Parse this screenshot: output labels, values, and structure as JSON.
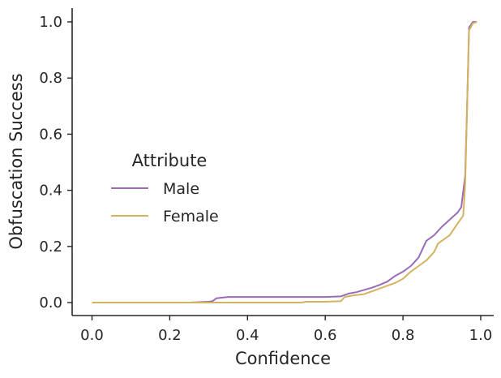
{
  "chart_data": {
    "type": "line",
    "title": "",
    "xlabel": "Confidence",
    "ylabel": "Obfuscation Success",
    "xlim": [
      -0.05,
      1.04
    ],
    "ylim": [
      -0.05,
      1.05
    ],
    "xticks": [
      0.0,
      0.2,
      0.4,
      0.6,
      0.8,
      1.0
    ],
    "xtick_labels": [
      "0.0",
      "0.2",
      "0.4",
      "0.6",
      "0.8",
      "1.0"
    ],
    "yticks": [
      0.0,
      0.2,
      0.4,
      0.6,
      0.8,
      1.0
    ],
    "ytick_labels": [
      "0.0",
      "0.2",
      "0.4",
      "0.6",
      "0.8",
      "1.0"
    ],
    "grid": false,
    "legend": {
      "title": "Attribute",
      "placement": "center-left"
    },
    "series": [
      {
        "name": "Male",
        "color": "#9a6bb8",
        "points": [
          [
            0.0,
            0.0
          ],
          [
            0.25,
            0.0
          ],
          [
            0.3,
            0.003
          ],
          [
            0.31,
            0.005
          ],
          [
            0.32,
            0.015
          ],
          [
            0.33,
            0.017
          ],
          [
            0.35,
            0.02
          ],
          [
            0.4,
            0.02
          ],
          [
            0.5,
            0.02
          ],
          [
            0.6,
            0.02
          ],
          [
            0.64,
            0.022
          ],
          [
            0.66,
            0.032
          ],
          [
            0.68,
            0.037
          ],
          [
            0.7,
            0.045
          ],
          [
            0.72,
            0.053
          ],
          [
            0.74,
            0.063
          ],
          [
            0.76,
            0.075
          ],
          [
            0.78,
            0.095
          ],
          [
            0.8,
            0.11
          ],
          [
            0.82,
            0.13
          ],
          [
            0.84,
            0.16
          ],
          [
            0.86,
            0.22
          ],
          [
            0.88,
            0.24
          ],
          [
            0.9,
            0.27
          ],
          [
            0.92,
            0.295
          ],
          [
            0.94,
            0.32
          ],
          [
            0.95,
            0.34
          ],
          [
            0.96,
            0.45
          ],
          [
            0.965,
            0.7
          ],
          [
            0.97,
            0.98
          ],
          [
            0.975,
            0.99
          ],
          [
            0.98,
            1.0
          ],
          [
            0.99,
            1.0
          ]
        ]
      },
      {
        "name": "Female",
        "color": "#d4b35f",
        "points": [
          [
            0.0,
            0.0
          ],
          [
            0.3,
            0.0
          ],
          [
            0.4,
            0.0
          ],
          [
            0.54,
            0.0
          ],
          [
            0.55,
            0.003
          ],
          [
            0.6,
            0.003
          ],
          [
            0.64,
            0.005
          ],
          [
            0.65,
            0.02
          ],
          [
            0.67,
            0.025
          ],
          [
            0.7,
            0.03
          ],
          [
            0.72,
            0.04
          ],
          [
            0.74,
            0.05
          ],
          [
            0.76,
            0.06
          ],
          [
            0.78,
            0.07
          ],
          [
            0.8,
            0.085
          ],
          [
            0.82,
            0.11
          ],
          [
            0.84,
            0.13
          ],
          [
            0.86,
            0.15
          ],
          [
            0.88,
            0.18
          ],
          [
            0.89,
            0.21
          ],
          [
            0.92,
            0.24
          ],
          [
            0.94,
            0.28
          ],
          [
            0.955,
            0.31
          ],
          [
            0.96,
            0.42
          ],
          [
            0.965,
            0.7
          ],
          [
            0.97,
            0.97
          ],
          [
            0.98,
            0.995
          ],
          [
            0.99,
            1.0
          ]
        ]
      }
    ]
  }
}
